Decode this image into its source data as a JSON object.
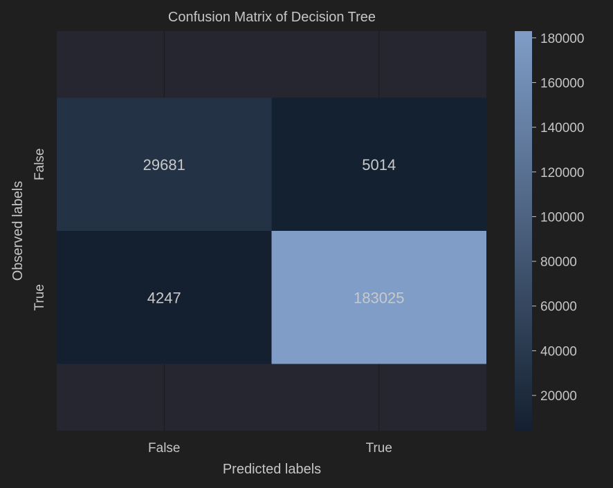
{
  "chart_data": {
    "type": "heatmap",
    "title": "Confusion Matrix of Decision Tree",
    "xlabel": "Predicted labels",
    "ylabel": "Observed labels",
    "x_categories": [
      "False",
      "True"
    ],
    "y_categories": [
      "False",
      "True"
    ],
    "values": [
      [
        29681,
        5014
      ],
      [
        4247,
        183025
      ]
    ],
    "colorbar": {
      "range": [
        4247,
        183025
      ],
      "ticks": [
        20000,
        40000,
        60000,
        80000,
        100000,
        120000,
        140000,
        160000,
        180000
      ],
      "color_low": "#142030",
      "color_high": "#7f9dc7"
    },
    "colors": {
      "background": "#1f1f1f",
      "axes_background": "#262630",
      "grid": "#1a1a1a",
      "text": "#c6c6c6"
    },
    "grid": true
  }
}
